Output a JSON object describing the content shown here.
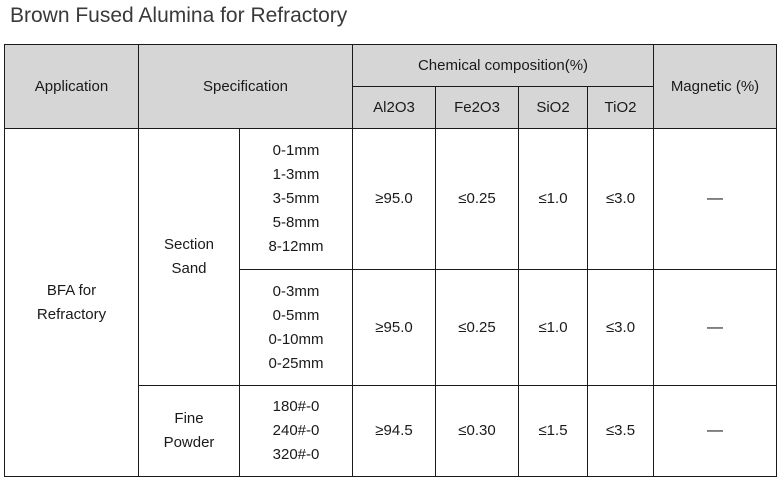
{
  "title": "Brown Fused Alumina for Refractory",
  "headers": {
    "application": "Application",
    "specification": "Specification",
    "chemical": "Chemical composition(%)",
    "magnetic": "Magnetic (%)",
    "al2o3": "Al2O3",
    "fe2o3": "Fe2O3",
    "sio2": "SiO2",
    "tio2": "TiO2"
  },
  "application": [
    "BFA for",
    "Refractory"
  ],
  "section_sand": [
    "Section",
    "Sand"
  ],
  "fine_powder": [
    "Fine",
    "Powder"
  ],
  "rows": [
    {
      "sizes": [
        "0-1mm",
        "1-3mm",
        "3-5mm",
        "5-8mm",
        "8-12mm"
      ],
      "al2o3": "≥95.0",
      "fe2o3": "≤0.25",
      "sio2": "≤1.0",
      "tio2": "≤3.0",
      "magnetic": "—"
    },
    {
      "sizes": [
        "0-3mm",
        "0-5mm",
        "0-10mm",
        "0-25mm"
      ],
      "al2o3": "≥95.0",
      "fe2o3": "≤0.25",
      "sio2": "≤1.0",
      "tio2": "≤3.0",
      "magnetic": "—"
    },
    {
      "sizes": [
        "180#-0",
        "240#-0",
        "320#-0"
      ],
      "al2o3": "≥94.5",
      "fe2o3": "≤0.30",
      "sio2": "≤1.5",
      "tio2": "≤3.5",
      "magnetic": "—"
    }
  ]
}
